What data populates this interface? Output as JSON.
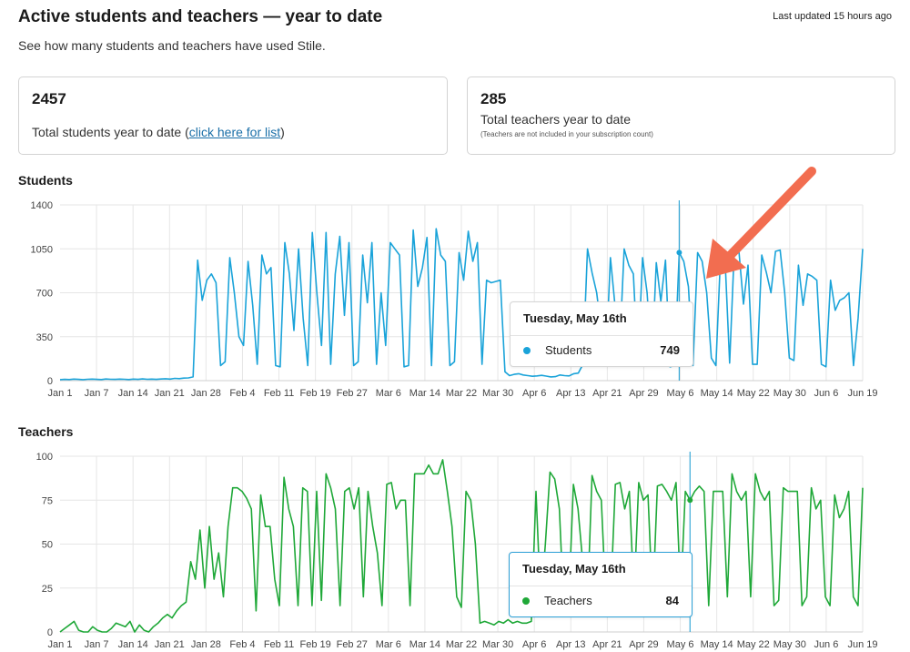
{
  "header": {
    "title": "Active students and teachers — year to date",
    "last_updated": "Last updated 15 hours ago",
    "subtitle": "See how many students and teachers have used Stile."
  },
  "cards": {
    "students": {
      "number": "2457",
      "label_prefix": "Total students year to date (",
      "link_text": "click here for list",
      "label_suffix": ")"
    },
    "teachers": {
      "number": "285",
      "label": "Total teachers year to date",
      "note": "(Teachers are not included in your subscription count)"
    }
  },
  "colors": {
    "students_line": "#1aa3d9",
    "teachers_line": "#1fa838",
    "annotation_arrow": "#f26d50",
    "hover_line": "#3aaad8"
  },
  "annotation": {
    "icon": "arrow-pointer-icon"
  },
  "chart_data": [
    {
      "type": "line",
      "title": "Students",
      "ylim": [
        0,
        1400
      ],
      "yticks": [
        "0",
        "350",
        "700",
        "1050",
        "1400"
      ],
      "xticks": [
        "Jan 1",
        "Jan 7",
        "Jan 14",
        "Jan 21",
        "Jan 28",
        "Feb 4",
        "Feb 11",
        "Feb 19",
        "Feb 27",
        "Mar 6",
        "Mar 14",
        "Mar 22",
        "Mar 30",
        "Apr 6",
        "Apr 13",
        "Apr 21",
        "Apr 29",
        "May 6",
        "May 14",
        "May 22",
        "May 30",
        "Jun 6",
        "Jun 19"
      ],
      "series": [
        {
          "name": "Students",
          "values": [
            8,
            10,
            9,
            12,
            10,
            8,
            11,
            12,
            10,
            9,
            13,
            11,
            10,
            12,
            11,
            9,
            12,
            10,
            14,
            11,
            12,
            10,
            13,
            15,
            12,
            18,
            16,
            20,
            22,
            30,
            960,
            640,
            800,
            850,
            780,
            120,
            150,
            980,
            700,
            350,
            280,
            950,
            600,
            130,
            1000,
            850,
            900,
            120,
            110,
            1100,
            850,
            400,
            1050,
            500,
            120,
            1180,
            700,
            280,
            1180,
            130,
            850,
            1150,
            520,
            1100,
            120,
            150,
            1000,
            620,
            1100,
            130,
            700,
            280,
            1100,
            1050,
            1000,
            110,
            120,
            1200,
            750,
            900,
            1140,
            120,
            1210,
            1000,
            950,
            120,
            150,
            1020,
            800,
            1190,
            950,
            1100,
            130,
            800,
            780,
            790,
            800,
            70,
            40,
            50,
            55,
            45,
            40,
            35,
            38,
            42,
            36,
            30,
            32,
            45,
            40,
            38,
            55,
            60,
            130,
            1050,
            860,
            700,
            400,
            150,
            980,
            600,
            250,
            1050,
            920,
            850,
            120,
            980,
            700,
            120,
            940,
            630,
            960,
            110,
            120,
            1020,
            950,
            749,
            120,
            1020,
            950,
            700,
            180,
            120,
            990,
            960,
            140,
            1040,
            1040,
            610,
            920,
            130,
            130,
            1000,
            860,
            700,
            1030,
            1040,
            700,
            180,
            160,
            920,
            600,
            850,
            830,
            800,
            130,
            110,
            800,
            560,
            640,
            660,
            700,
            120,
            500,
            1050
          ]
        }
      ],
      "tooltip": {
        "date": "Tuesday, May 16th",
        "series": "Students",
        "value": "749"
      }
    },
    {
      "type": "line",
      "title": "Teachers",
      "ylim": [
        0,
        100
      ],
      "yticks": [
        "0",
        "25",
        "50",
        "75",
        "100"
      ],
      "xticks": [
        "Jan 1",
        "Jan 7",
        "Jan 14",
        "Jan 21",
        "Jan 28",
        "Feb 4",
        "Feb 11",
        "Feb 19",
        "Feb 27",
        "Mar 6",
        "Mar 14",
        "Mar 22",
        "Mar 30",
        "Apr 6",
        "Apr 13",
        "Apr 21",
        "Apr 29",
        "May 6",
        "May 14",
        "May 22",
        "May 30",
        "Jun 6",
        "Jun 19"
      ],
      "series": [
        {
          "name": "Teachers",
          "values": [
            0,
            2,
            4,
            6,
            1,
            0,
            0,
            3,
            1,
            0,
            0,
            2,
            5,
            4,
            3,
            6,
            0,
            4,
            1,
            0,
            3,
            5,
            8,
            10,
            8,
            12,
            15,
            17,
            40,
            30,
            58,
            25,
            60,
            30,
            45,
            20,
            60,
            82,
            82,
            80,
            76,
            70,
            12,
            78,
            60,
            60,
            30,
            15,
            88,
            70,
            60,
            15,
            82,
            80,
            15,
            80,
            18,
            90,
            82,
            70,
            15,
            80,
            82,
            70,
            82,
            20,
            80,
            60,
            45,
            15,
            84,
            85,
            70,
            75,
            75,
            15,
            90,
            90,
            90,
            95,
            90,
            90,
            98,
            80,
            60,
            20,
            14,
            80,
            75,
            50,
            5,
            6,
            5,
            4,
            6,
            5,
            7,
            5,
            6,
            5,
            5,
            6,
            80,
            16,
            50,
            91,
            87,
            70,
            10,
            15,
            84,
            70,
            40,
            15,
            89,
            80,
            75,
            15,
            20,
            84,
            85,
            70,
            80,
            20,
            85,
            75,
            78,
            15,
            83,
            84,
            80,
            75,
            85,
            20,
            80,
            75,
            80,
            83,
            80,
            15,
            80,
            80,
            80,
            20,
            90,
            80,
            75,
            80,
            20,
            90,
            80,
            75,
            80,
            15,
            18,
            82,
            80,
            80,
            80,
            15,
            20,
            82,
            70,
            75,
            20,
            15,
            78,
            65,
            70,
            80,
            20,
            15,
            82
          ]
        }
      ],
      "tooltip": {
        "date": "Tuesday, May 16th",
        "series": "Teachers",
        "value": "84"
      }
    }
  ]
}
